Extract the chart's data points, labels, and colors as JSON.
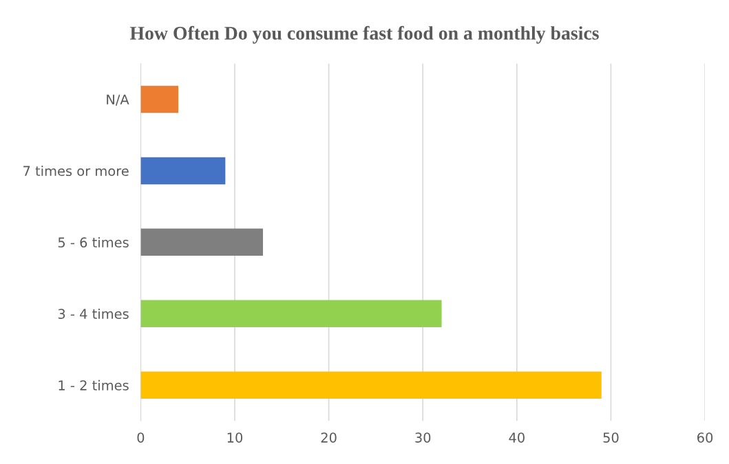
{
  "chart_data": {
    "type": "bar",
    "orientation": "horizontal",
    "title": "How Often Do you consume fast food on a monthly basics",
    "categories": [
      "N/A",
      "7 times or more",
      "5 - 6 times",
      "3 - 4 times",
      "1 - 2 times"
    ],
    "values": [
      4,
      9,
      13,
      32,
      49
    ],
    "colors": [
      "#ed7d31",
      "#4472c4",
      "#7f7f7f",
      "#92d050",
      "#ffc000"
    ],
    "xlim": [
      0,
      60
    ],
    "xticks": [
      0,
      10,
      20,
      30,
      40,
      50,
      60
    ],
    "grid": "x"
  }
}
